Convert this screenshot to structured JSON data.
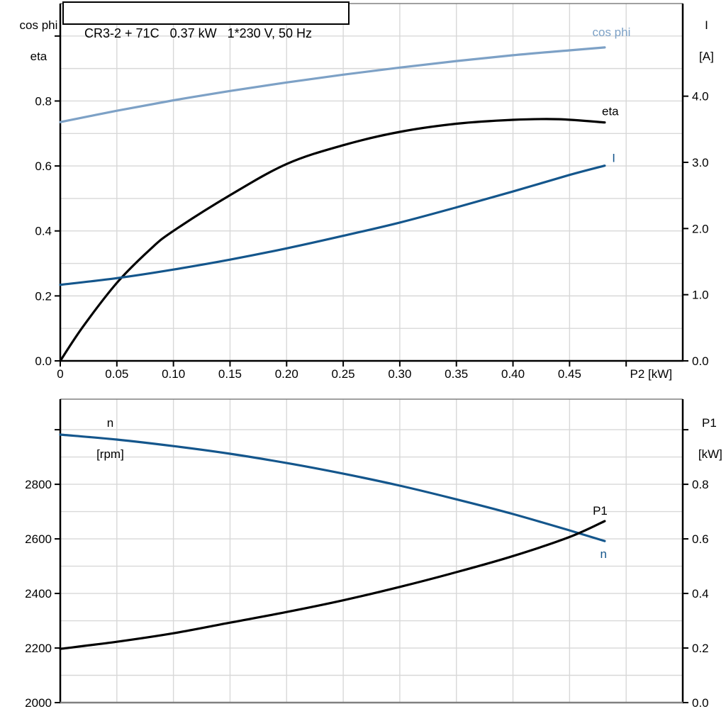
{
  "colors": {
    "light_blue": "#7DA1C6",
    "dark_blue": "#14568C",
    "black": "#000000",
    "grid": "#D8D8D8",
    "frame": "#808080",
    "background": "#FFFFFF"
  },
  "chart_data": [
    {
      "type": "line",
      "name": "motor-performance-chart",
      "title": "CR3-2 + 71C   0.37 kW   1*230 V, 50 Hz",
      "x_axis": {
        "label": "P2 [kW]",
        "label_at": 0.522,
        "min": 0,
        "max": 0.55,
        "grid": [
          0.05,
          0.1,
          0.15,
          0.2,
          0.25,
          0.3,
          0.35,
          0.4,
          0.45,
          0.5
        ],
        "ticks": [
          {
            "v": 0,
            "label": "0"
          },
          {
            "v": 0.05,
            "label": "0.05"
          },
          {
            "v": 0.1,
            "label": "0.10"
          },
          {
            "v": 0.15,
            "label": "0.15"
          },
          {
            "v": 0.2,
            "label": "0.20"
          },
          {
            "v": 0.25,
            "label": "0.25"
          },
          {
            "v": 0.3,
            "label": "0.30"
          },
          {
            "v": 0.35,
            "label": "0.35"
          },
          {
            "v": 0.4,
            "label": "0.40"
          },
          {
            "v": 0.45,
            "label": "0.45"
          },
          {
            "v": 0.5,
            "label": ""
          }
        ]
      },
      "left_axis": {
        "title_lines": [
          "cos phi",
          "eta"
        ],
        "min": 0,
        "max": 1.1,
        "ticks": [
          {
            "v": 0.0,
            "label": "0.0"
          },
          {
            "v": 0.2,
            "label": "0.2"
          },
          {
            "v": 0.4,
            "label": "0.4"
          },
          {
            "v": 0.6,
            "label": "0.6"
          },
          {
            "v": 0.8,
            "label": "0.8"
          },
          {
            "v": 1.0,
            "label": ""
          }
        ]
      },
      "right_axis": {
        "title_lines": [
          "I",
          "[A]"
        ],
        "min": 0,
        "max": 5.4,
        "ticks": [
          {
            "v": 0,
            "label": "0.0"
          },
          {
            "v": 1,
            "label": "1.0"
          },
          {
            "v": 2,
            "label": "2.0"
          },
          {
            "v": 3,
            "label": "3.0"
          },
          {
            "v": 4,
            "label": "4.0"
          }
        ]
      },
      "hgrid": {
        "axis": "left",
        "values": [
          0.1,
          0.2,
          0.3,
          0.4,
          0.5,
          0.6,
          0.7,
          0.8,
          0.9,
          1.0
        ]
      },
      "series": [
        {
          "name": "cos phi",
          "axis": "left",
          "color": "light_blue",
          "label": {
            "x": 0.487,
            "v": 1.013
          },
          "x": [
            0,
            0.05,
            0.1,
            0.15,
            0.2,
            0.25,
            0.3,
            0.35,
            0.4,
            0.45,
            0.481
          ],
          "values": [
            0.735,
            0.77,
            0.802,
            0.831,
            0.857,
            0.881,
            0.903,
            0.923,
            0.941,
            0.956,
            0.965
          ]
        },
        {
          "name": "eta",
          "axis": "left",
          "color": "black",
          "label": {
            "x": 0.486,
            "v": 0.769
          },
          "x": [
            0,
            0.02,
            0.05,
            0.08,
            0.1,
            0.15,
            0.2,
            0.25,
            0.3,
            0.35,
            0.4,
            0.44,
            0.481
          ],
          "values": [
            0,
            0.105,
            0.24,
            0.345,
            0.4,
            0.51,
            0.606,
            0.664,
            0.705,
            0.73,
            0.742,
            0.744,
            0.734
          ]
        },
        {
          "name": "I",
          "axis": "right",
          "color": "dark_blue",
          "label": {
            "x": 0.489,
            "v": 3.07
          },
          "x": [
            0,
            0.05,
            0.1,
            0.15,
            0.2,
            0.25,
            0.3,
            0.35,
            0.4,
            0.45,
            0.481
          ],
          "values": [
            1.15,
            1.25,
            1.38,
            1.53,
            1.7,
            1.89,
            2.09,
            2.32,
            2.56,
            2.81,
            2.95
          ]
        }
      ]
    },
    {
      "type": "line",
      "name": "speed-power-chart",
      "title": "",
      "x_axis": {
        "label": "",
        "label_at": 0,
        "min": 0,
        "max": 0.55,
        "grid": [
          0.05,
          0.1,
          0.15,
          0.2,
          0.25,
          0.3,
          0.35,
          0.4,
          0.45,
          0.5
        ],
        "ticks": []
      },
      "left_axis": {
        "title_lines": [
          "n",
          "[rpm]"
        ],
        "min": 2000,
        "max": 3112,
        "ticks": [
          {
            "v": 2000,
            "label": "2000"
          },
          {
            "v": 2200,
            "label": "2200"
          },
          {
            "v": 2400,
            "label": "2400"
          },
          {
            "v": 2600,
            "label": "2600"
          },
          {
            "v": 2800,
            "label": "2800"
          },
          {
            "v": 3000,
            "label": ""
          }
        ]
      },
      "right_axis": {
        "title_lines": [
          "P1",
          "[kW]"
        ],
        "min": 0,
        "max": 1.112,
        "ticks": [
          {
            "v": 0,
            "label": "0.0"
          },
          {
            "v": 0.2,
            "label": "0.2"
          },
          {
            "v": 0.4,
            "label": "0.4"
          },
          {
            "v": 0.6,
            "label": "0.6"
          },
          {
            "v": 0.8,
            "label": "0.8"
          },
          {
            "v": 1.0,
            "label": ""
          }
        ]
      },
      "hgrid": {
        "axis": "right",
        "values": [
          0.1,
          0.2,
          0.3,
          0.4,
          0.5,
          0.6,
          0.7,
          0.8,
          0.9,
          1.0
        ]
      },
      "series": [
        {
          "name": "n",
          "axis": "left",
          "color": "dark_blue",
          "label": {
            "x": 0.48,
            "v": 2545
          },
          "x": [
            0,
            0.05,
            0.1,
            0.15,
            0.2,
            0.25,
            0.3,
            0.35,
            0.4,
            0.45,
            0.481
          ],
          "values": [
            2982,
            2964,
            2940,
            2912,
            2878,
            2839,
            2795,
            2745,
            2691,
            2631,
            2592
          ]
        },
        {
          "name": "P1",
          "axis": "right",
          "color": "black",
          "label": {
            "x": 0.477,
            "v": 0.704
          },
          "x": [
            0,
            0.05,
            0.1,
            0.15,
            0.2,
            0.25,
            0.3,
            0.35,
            0.4,
            0.45,
            0.481
          ],
          "values": [
            0.197,
            0.223,
            0.254,
            0.293,
            0.332,
            0.375,
            0.424,
            0.478,
            0.537,
            0.607,
            0.665
          ]
        }
      ]
    }
  ]
}
